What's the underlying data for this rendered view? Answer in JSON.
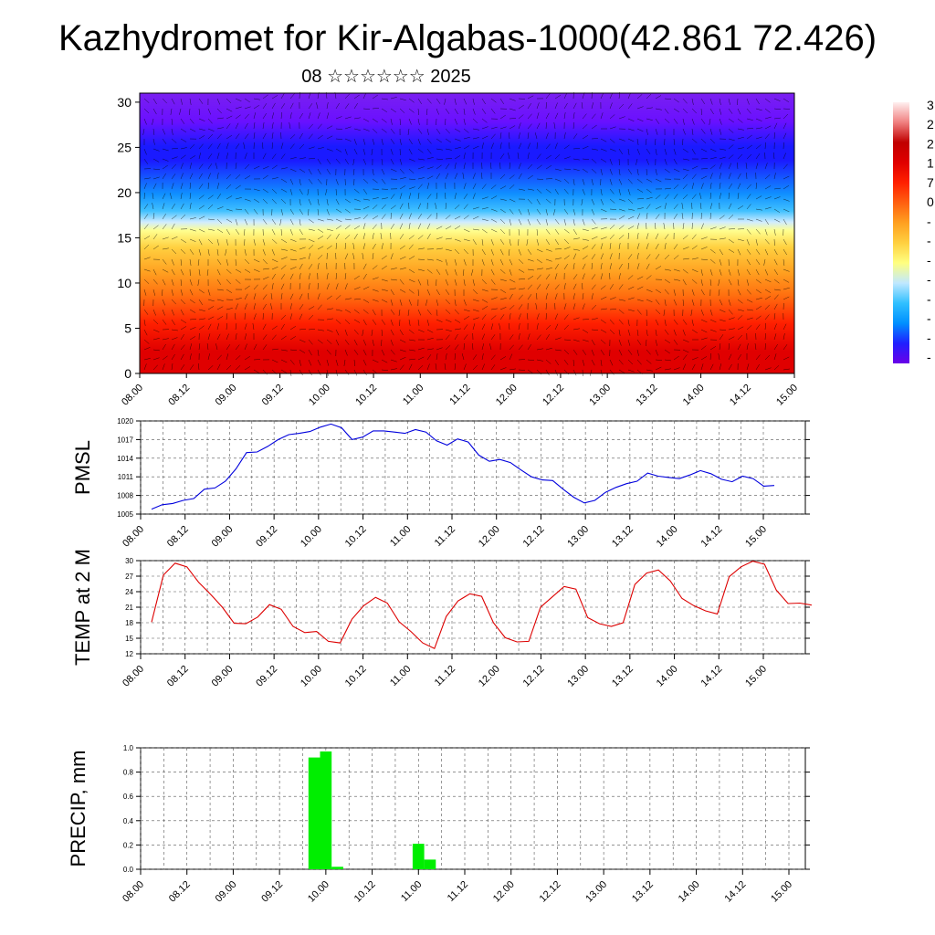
{
  "title": "Kazhydromet for Kir-Algabas-1000(42.861 72.426)",
  "subtitle": "08 ☆☆☆☆☆☆ 2025",
  "colors": {
    "pmsl_line": "#0000dd",
    "temp_line": "#dd0000",
    "precip_bar": "#00ee00"
  },
  "chart_data": [
    {
      "type": "heatmap",
      "title": "",
      "x_ticks": [
        "08.00",
        "08.12",
        "09.00",
        "09.12",
        "10.00",
        "10.12",
        "11.00",
        "11.12",
        "12.00",
        "12.12",
        "13.00",
        "13.12",
        "14.00",
        "14.12",
        "15.00"
      ],
      "y_ticks": [
        0,
        5,
        10,
        15,
        20,
        25,
        30
      ],
      "ylim": [
        0,
        31
      ],
      "colorbar_labels": [
        "3",
        "2",
        "2",
        "1",
        "7",
        "0",
        "-",
        "-",
        "-",
        "-",
        "-",
        "-",
        "-",
        "-"
      ],
      "colorbar_stops": [
        "#6a00e8",
        "#2020ff",
        "#0090ff",
        "#30c0ff",
        "#c0e8ff",
        "#ffff80",
        "#ffd040",
        "#ffa020",
        "#ff6010",
        "#ff2000",
        "#e00000",
        "#c00000",
        "#f08080",
        "#fff0f0"
      ]
    },
    {
      "type": "line",
      "ylabel": "PMSL",
      "ylim": [
        1005,
        1020
      ],
      "y_ticks": [
        1005,
        1008,
        1011,
        1014,
        1017,
        1020
      ],
      "x_ticks": [
        "08.00",
        "08.12",
        "09.00",
        "09.12",
        "10.00",
        "10.12",
        "11.00",
        "11.12",
        "12.00",
        "12.12",
        "13.00",
        "13.12",
        "14.00",
        "14.12",
        "15.00"
      ],
      "values": [
        1005.8,
        1006.5,
        1006.7,
        1007.2,
        1007.5,
        1009.0,
        1009.2,
        1010.3,
        1012.3,
        1014.9,
        1015.0,
        1015.9,
        1017.0,
        1017.8,
        1018.0,
        1018.3,
        1019.0,
        1019.5,
        1018.9,
        1017.0,
        1017.4,
        1018.4,
        1018.4,
        1018.2,
        1018.0,
        1018.6,
        1018.2,
        1016.8,
        1016.1,
        1017.1,
        1016.6,
        1014.5,
        1013.5,
        1013.8,
        1013.3,
        1012.1,
        1011.0,
        1010.5,
        1010.4,
        1009.0,
        1007.7,
        1006.8,
        1007.2,
        1008.5,
        1009.3,
        1009.9,
        1010.3,
        1011.6,
        1011.1,
        1010.9,
        1010.7,
        1011.3,
        1012.0,
        1011.5,
        1010.6,
        1010.2,
        1011.1,
        1010.7,
        1009.5,
        1009.6
      ]
    },
    {
      "type": "line",
      "ylabel": "TEMP at 2 M",
      "ylim": [
        12,
        30
      ],
      "y_ticks": [
        12,
        15,
        18,
        21,
        24,
        27,
        30
      ],
      "x_ticks": [
        "08.00",
        "08.12",
        "09.00",
        "09.12",
        "10.00",
        "10.12",
        "11.00",
        "11.12",
        "12.00",
        "12.12",
        "13.00",
        "13.12",
        "14.00",
        "14.12",
        "15.00"
      ],
      "values": [
        18.1,
        27.2,
        29.5,
        28.8,
        25.8,
        23.5,
        21.0,
        17.9,
        17.8,
        19.1,
        21.5,
        20.6,
        17.3,
        16.1,
        16.3,
        14.4,
        14.1,
        18.7,
        21.3,
        22.9,
        21.8,
        18.2,
        16.3,
        14.1,
        13.0,
        19.2,
        22.2,
        23.6,
        23.1,
        18.0,
        15.1,
        14.3,
        14.4,
        21.0,
        23.0,
        25.0,
        24.5,
        19.0,
        17.8,
        17.3,
        18.0,
        25.4,
        27.6,
        28.2,
        26.1,
        22.7,
        21.3,
        20.3,
        19.7,
        26.9,
        28.8,
        29.9,
        29.3,
        24.3,
        21.7,
        21.8,
        21.4
      ]
    },
    {
      "type": "bar",
      "ylabel": "PRECIP, mm",
      "ylim": [
        0,
        1.0
      ],
      "y_ticks": [
        "0.0",
        "0.2",
        "0.4",
        "0.6",
        "0.8",
        "1.0"
      ],
      "x_ticks": [
        "08.00",
        "08.12",
        "09.00",
        "09.12",
        "10.00",
        "10.12",
        "11.00",
        "11.12",
        "12.00",
        "12.12",
        "13.00",
        "13.12",
        "14.00",
        "14.12",
        "15.00"
      ],
      "bars": [
        {
          "t": 1.875,
          "value": 0.92
        },
        {
          "t": 2.0,
          "value": 0.97
        },
        {
          "t": 2.125,
          "value": 0.02
        },
        {
          "t": 3.0,
          "value": 0.21
        },
        {
          "t": 3.125,
          "value": 0.08
        }
      ]
    }
  ]
}
